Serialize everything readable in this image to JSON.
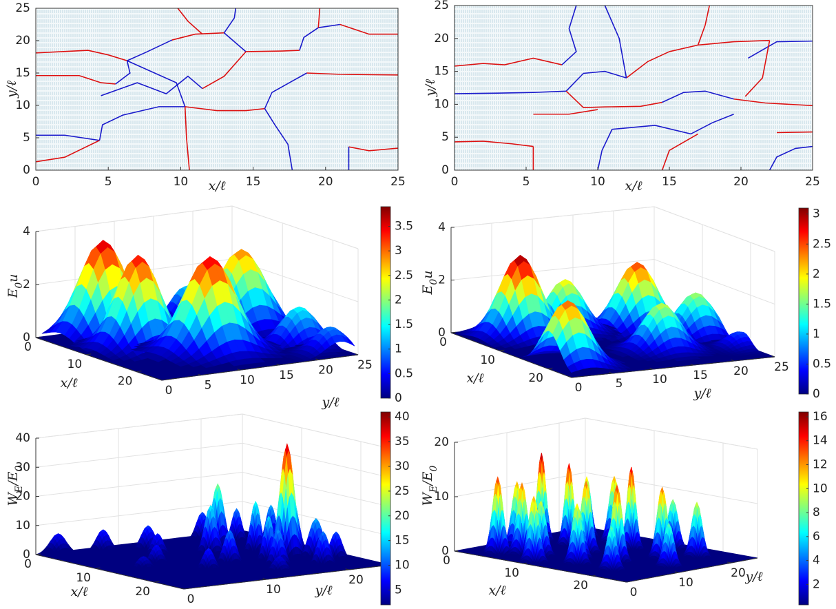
{
  "chart_data": [
    {
      "type": "line",
      "xlabel": "x/ℓ",
      "ylabel": "y/ℓ",
      "xlim": [
        0,
        25
      ],
      "ylim": [
        0,
        25
      ],
      "xticks": [
        0,
        5,
        10,
        15,
        20,
        25
      ],
      "yticks": [
        0,
        5,
        10,
        15,
        20,
        25
      ],
      "series": [
        {
          "color": "#dd1111",
          "x": [
            0,
            3.6,
            5,
            6.3
          ],
          "values": [
            18.1,
            18.5,
            17.8,
            16.9
          ]
        },
        {
          "color": "#1a1acc",
          "x": [
            6.3,
            7.6,
            9.4
          ],
          "values": [
            16.9,
            18.2,
            20.1
          ]
        },
        {
          "color": "#dd1111",
          "x": [
            9.4,
            11,
            13
          ],
          "values": [
            20.1,
            21,
            21.2
          ]
        },
        {
          "color": "#1a1acc",
          "x": [
            13,
            13.7,
            13.8
          ],
          "values": [
            21.2,
            23.5,
            25
          ]
        },
        {
          "color": "#1a1acc",
          "x": [
            13,
            14.5
          ],
          "values": [
            21.2,
            18.3
          ]
        },
        {
          "color": "#dd1111",
          "x": [
            14.5,
            17,
            18.2
          ],
          "values": [
            18.3,
            18.4,
            18.5
          ]
        },
        {
          "color": "#1a1acc",
          "x": [
            18.2,
            18.5,
            19.5,
            21
          ],
          "values": [
            18.5,
            20.5,
            22,
            22.5
          ]
        },
        {
          "color": "#dd1111",
          "x": [
            21,
            23,
            25
          ],
          "values": [
            22.5,
            21,
            21
          ]
        },
        {
          "color": "#dd1111",
          "x": [
            19.5,
            19.6
          ],
          "values": [
            22,
            25
          ]
        },
        {
          "color": "#dd1111",
          "x": [
            0,
            3,
            4.5,
            5.5
          ],
          "values": [
            14.6,
            14.6,
            13.5,
            13.3
          ]
        },
        {
          "color": "#1a1acc",
          "x": [
            5.5,
            6.5,
            6.3
          ],
          "values": [
            13.3,
            15,
            16.9
          ]
        },
        {
          "color": "#1a1acc",
          "x": [
            4.5,
            7,
            9,
            10.5,
            11.5
          ],
          "values": [
            11.5,
            13.5,
            11.8,
            14.5,
            12.6
          ]
        },
        {
          "color": "#dd1111",
          "x": [
            11.5,
            13,
            14.5
          ],
          "values": [
            12.6,
            14.5,
            18.3
          ]
        },
        {
          "color": "#1a1acc",
          "x": [
            6.3,
            9.7,
            10.3
          ],
          "values": [
            16.9,
            13.5,
            9.8
          ]
        },
        {
          "color": "#dd1111",
          "x": [
            10.3,
            12.5,
            14.5,
            15.8
          ],
          "values": [
            9.8,
            9.2,
            9.2,
            9.5
          ]
        },
        {
          "color": "#1a1acc",
          "x": [
            15.8,
            16.3,
            17.5,
            18.7
          ],
          "values": [
            9.5,
            12,
            13.5,
            15
          ]
        },
        {
          "color": "#dd1111",
          "x": [
            18.7,
            21,
            25
          ],
          "values": [
            15,
            14.8,
            14.7
          ]
        },
        {
          "color": "#1a1acc",
          "x": [
            0,
            2,
            4.4
          ],
          "values": [
            5.4,
            5.4,
            4.6
          ]
        },
        {
          "color": "#dd1111",
          "x": [
            0,
            2,
            4.4
          ],
          "values": [
            1.3,
            2,
            4.6
          ]
        },
        {
          "color": "#1a1acc",
          "x": [
            4.4,
            4.6,
            6,
            8.5,
            10.3
          ],
          "values": [
            4.6,
            7,
            8.5,
            9.8,
            9.8
          ]
        },
        {
          "color": "#dd1111",
          "x": [
            10.3,
            10.4,
            10.6
          ],
          "values": [
            9.8,
            5,
            0
          ]
        },
        {
          "color": "#1a1acc",
          "x": [
            15.8,
            16.5,
            17.4,
            17.7
          ],
          "values": [
            9.5,
            7,
            4,
            0
          ]
        },
        {
          "color": "#dd1111",
          "x": [
            21.6,
            23,
            25
          ],
          "values": [
            3.6,
            3,
            3.4
          ]
        },
        {
          "color": "#1a1acc",
          "x": [
            21.6,
            21.6
          ],
          "values": [
            0,
            3.6
          ]
        },
        {
          "color": "#dd1111",
          "x": [
            9.8,
            10.5,
            11.5
          ],
          "values": [
            25,
            23,
            21
          ]
        }
      ]
    },
    {
      "type": "line",
      "xlabel": "x/ℓ",
      "ylabel": "y/ℓ",
      "xlim": [
        0,
        25
      ],
      "ylim": [
        0,
        25
      ],
      "xticks": [
        0,
        5,
        10,
        15,
        20,
        25
      ],
      "yticks": [
        0,
        5,
        10,
        15,
        20,
        25
      ],
      "series": [
        {
          "color": "#dd1111",
          "x": [
            0,
            2,
            3.5,
            5.5,
            7.5
          ],
          "values": [
            15.8,
            16.2,
            16,
            17,
            16
          ]
        },
        {
          "color": "#1a1acc",
          "x": [
            7.5,
            8.5,
            8,
            8.5
          ],
          "values": [
            16,
            18,
            21.5,
            25
          ]
        },
        {
          "color": "#dd1111",
          "x": [
            0,
            2,
            4,
            5.5
          ],
          "values": [
            4.3,
            4.4,
            4,
            3.6
          ]
        },
        {
          "color": "#1a1acc",
          "x": [
            0,
            3,
            5.5,
            7.8
          ],
          "values": [
            11.6,
            11.7,
            11.8,
            12
          ]
        },
        {
          "color": "#1a1acc",
          "x": [
            7.8,
            9,
            10.5,
            12
          ],
          "values": [
            12,
            14.7,
            15,
            14
          ]
        },
        {
          "color": "#dd1111",
          "x": [
            7.8,
            9,
            10.5,
            13,
            14.5
          ],
          "values": [
            12,
            9.5,
            9.6,
            9.7,
            10.3
          ]
        },
        {
          "color": "#1a1acc",
          "x": [
            14.5,
            16,
            17.5,
            19.5
          ],
          "values": [
            10.3,
            11.8,
            12,
            10.8
          ]
        },
        {
          "color": "#dd1111",
          "x": [
            19.5,
            21.7,
            25
          ],
          "values": [
            10.8,
            10.2,
            9.8
          ]
        },
        {
          "color": "#1a1acc",
          "x": [
            20.5,
            22.5,
            25
          ],
          "values": [
            17,
            19.5,
            19.6
          ]
        },
        {
          "color": "#dd1111",
          "x": [
            15,
            17,
            19.5,
            22
          ],
          "values": [
            18,
            19,
            19.5,
            19.7
          ]
        },
        {
          "color": "#dd1111",
          "x": [
            5.5,
            8,
            10
          ],
          "values": [
            8.5,
            8.5,
            9.2
          ]
        },
        {
          "color": "#1a1acc",
          "x": [
            10,
            10.3,
            11,
            14,
            16.5,
            18,
            19.5
          ],
          "values": [
            0,
            3,
            6.2,
            6.8,
            5.5,
            7.2,
            8.5
          ]
        },
        {
          "color": "#dd1111",
          "x": [
            5.5,
            5.5
          ],
          "values": [
            0,
            3.6
          ]
        },
        {
          "color": "#dd1111",
          "x": [
            14.5,
            15,
            17
          ],
          "values": [
            0,
            3,
            5.5
          ]
        },
        {
          "color": "#1a1acc",
          "x": [
            22,
            22.5,
            23.8,
            25
          ],
          "values": [
            0,
            2,
            3.3,
            3.6
          ]
        },
        {
          "color": "#dd1111",
          "x": [
            12,
            13.5,
            15
          ],
          "values": [
            14,
            16.5,
            18
          ]
        },
        {
          "color": "#dd1111",
          "x": [
            22,
            21.5,
            20.3
          ],
          "values": [
            19.7,
            14,
            11.2
          ]
        },
        {
          "color": "#dd1111",
          "x": [
            22.5,
            25
          ],
          "values": [
            5.7,
            5.8
          ]
        },
        {
          "color": "#1a1acc",
          "x": [
            12,
            11.5,
            10.5
          ],
          "values": [
            14,
            20,
            25
          ]
        },
        {
          "color": "#dd1111",
          "x": [
            17,
            17.5,
            17.8
          ],
          "values": [
            19,
            22,
            25
          ]
        }
      ]
    },
    {
      "type": "surface",
      "xlabel": "x/ℓ",
      "ylabel": "y/ℓ",
      "zlabel": "E_0u",
      "xlim": [
        0,
        25
      ],
      "ylim": [
        0,
        25
      ],
      "zlim": [
        0,
        4
      ],
      "xticks": [
        0,
        10,
        20
      ],
      "yticks": [
        0,
        5,
        10,
        15,
        20,
        25
      ],
      "zticks": [
        0,
        2,
        4
      ],
      "clim": [
        0,
        3.9
      ],
      "cticks": [
        0,
        0.5,
        1,
        1.5,
        2,
        2.5,
        3,
        3.5
      ],
      "peak_x": [
        4,
        10,
        15.7,
        7.6,
        18.3,
        22.9,
        1
      ],
      "peak_y": [
        6,
        6.6,
        12.1,
        21.3,
        21.8,
        22.8,
        18.7
      ],
      "peak_width": [
        2.6,
        2.4,
        2.8,
        2.6,
        2,
        1.8,
        1.8
      ],
      "values": [
        3.7,
        3.5,
        3.6,
        3.0,
        1.5,
        1.0,
        1.3
      ]
    },
    {
      "type": "surface",
      "xlabel": "x/ℓ",
      "ylabel": "y/ℓ",
      "zlabel": "E_0u",
      "xlim": [
        0,
        25
      ],
      "ylim": [
        0,
        25
      ],
      "zlim": [
        0,
        4
      ],
      "xticks": [
        0,
        10,
        20
      ],
      "yticks": [
        0,
        5,
        10,
        15,
        20,
        25
      ],
      "zticks": [
        0,
        2,
        4
      ],
      "clim": [
        0,
        3.1
      ],
      "cticks": [
        0,
        0.5,
        1,
        1.5,
        2,
        2.5,
        3
      ],
      "peak_x": [
        4.9,
        20,
        7.4,
        17.2,
        13,
        4.8,
        19.4
      ],
      "peak_y": [
        5.6,
        2.5,
        18.5,
        15.7,
        22.4,
        11.2,
        24
      ],
      "peak_width": [
        2.2,
        2.2,
        2.2,
        2,
        2,
        2,
        1.5
      ],
      "values": [
        3.1,
        2.5,
        2.6,
        1.8,
        1.7,
        2.0,
        0.6
      ]
    },
    {
      "type": "surface",
      "xlabel": "x/ℓ",
      "ylabel": "y/ℓ",
      "zlabel": "W_E/E_0",
      "xlim": [
        0,
        25
      ],
      "ylim": [
        0,
        25
      ],
      "zlim": [
        0,
        40
      ],
      "xticks": [
        0,
        10,
        20
      ],
      "yticks": [
        0,
        10,
        20
      ],
      "zticks": [
        0,
        10,
        20,
        30,
        40
      ],
      "clim": [
        2,
        41
      ],
      "cticks": [
        5,
        10,
        15,
        20,
        25,
        30,
        35,
        40
      ],
      "peak_x": [
        15.5,
        7,
        12,
        10,
        14,
        18,
        20,
        22,
        16,
        5,
        3,
        1,
        8,
        18,
        12,
        20,
        6,
        3,
        9,
        17,
        23,
        14
      ],
      "peak_y": [
        19.3,
        17,
        18,
        14,
        21,
        21,
        15,
        19,
        12,
        10,
        6,
        2,
        9,
        8,
        6,
        22,
        20,
        18,
        22,
        16,
        13,
        3
      ],
      "peak_width": [
        0.7,
        0.6,
        0.5,
        0.6,
        0.6,
        0.7,
        0.6,
        0.6,
        0.6,
        0.7,
        0.7,
        0.8,
        0.6,
        0.6,
        0.6,
        0.6,
        0.5,
        0.6,
        0.5,
        0.5,
        0.7,
        0.7
      ],
      "values": [
        39,
        22,
        18,
        17,
        20,
        14,
        13,
        12,
        12,
        9,
        8,
        7,
        8,
        8,
        7,
        10,
        12,
        10,
        14,
        16,
        6,
        5
      ]
    },
    {
      "type": "surface",
      "xlabel": "x/ℓ",
      "ylabel": "y/ℓ",
      "zlabel": "W_E/E_0",
      "xlim": [
        0,
        25
      ],
      "ylim": [
        0,
        25
      ],
      "zlim": [
        0,
        20
      ],
      "xticks": [
        0,
        10,
        20
      ],
      "yticks": [
        0,
        10,
        20
      ],
      "zticks": [
        0,
        10,
        20
      ],
      "clim": [
        0.3,
        16.4
      ],
      "cticks": [
        2,
        4,
        6,
        8,
        10,
        12,
        14,
        16
      ],
      "peak_x": [
        4,
        6,
        3,
        8,
        10,
        2,
        6,
        10,
        14,
        16,
        18,
        12,
        20,
        22,
        8,
        15,
        19,
        4,
        12
      ],
      "peak_y": [
        3,
        5,
        8,
        6,
        2,
        14,
        14,
        12,
        5,
        10,
        16,
        18,
        20,
        12,
        20,
        22,
        5,
        20,
        8
      ],
      "peak_width": [
        0.6,
        0.6,
        0.6,
        0.6,
        0.6,
        0.5,
        0.5,
        0.6,
        0.6,
        0.6,
        0.6,
        0.5,
        0.6,
        0.6,
        0.6,
        0.6,
        0.6,
        0.5,
        0.6
      ],
      "values": [
        14,
        13,
        12,
        10,
        12,
        16,
        15,
        13,
        11,
        14,
        13,
        15,
        10,
        8,
        12,
        9,
        8,
        11,
        9
      ]
    }
  ]
}
